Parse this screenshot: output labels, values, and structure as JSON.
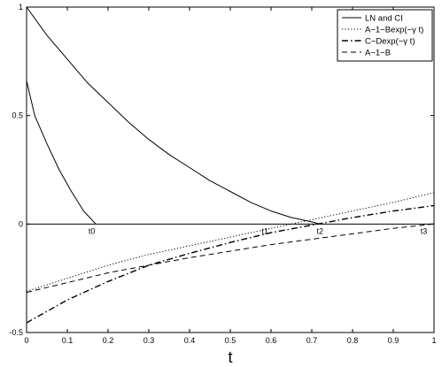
{
  "chart_data": {
    "type": "line",
    "title": "",
    "xlabel": "t",
    "ylabel": "",
    "xlim": [
      0,
      1
    ],
    "ylim": [
      -0.5,
      1
    ],
    "grid": false,
    "legend_position": "top-right",
    "x_ticks": [
      "0",
      "0.1",
      "0.2",
      "0.3",
      "0.4",
      "0.5",
      "0.6",
      "0.7",
      "0.8",
      "0.9",
      "1"
    ],
    "y_ticks": [
      "-0.5",
      "0",
      "0.5",
      "1"
    ],
    "zero_line": 0,
    "annotations": [
      {
        "text": "t0",
        "x": 0.16,
        "y": -0.045
      },
      {
        "text": "t1",
        "x": 0.585,
        "y": -0.045
      },
      {
        "text": "t2",
        "x": 0.72,
        "y": -0.045
      },
      {
        "text": "t3",
        "x": 0.975,
        "y": -0.045
      }
    ],
    "series": [
      {
        "name": "LN and CI",
        "style": "solid",
        "x": [
          0,
          0.05,
          0.1,
          0.15,
          0.2,
          0.25,
          0.3,
          0.35,
          0.4,
          0.45,
          0.5,
          0.55,
          0.6,
          0.65,
          0.7,
          0.72
        ],
        "y": [
          1.0,
          0.87,
          0.76,
          0.65,
          0.56,
          0.47,
          0.39,
          0.32,
          0.26,
          0.2,
          0.15,
          0.1,
          0.06,
          0.03,
          0.01,
          0.0
        ]
      },
      {
        "name": "",
        "style": "solid",
        "x": [
          0,
          0.02,
          0.05,
          0.08,
          0.11,
          0.14,
          0.17
        ],
        "y": [
          0.66,
          0.5,
          0.37,
          0.25,
          0.15,
          0.06,
          0.0
        ]
      },
      {
        "name": "A−1−Bexp(−γ t)",
        "style": "dotted",
        "x": [
          0,
          0.1,
          0.2,
          0.3,
          0.4,
          0.5,
          0.6,
          0.7,
          0.8,
          0.9,
          1.0
        ],
        "y": [
          -0.31,
          -0.25,
          -0.19,
          -0.14,
          -0.1,
          -0.06,
          -0.02,
          0.02,
          0.06,
          0.1,
          0.145
        ]
      },
      {
        "name": "C−Dexp(−γ t)",
        "style": "dashdot",
        "x": [
          0,
          0.1,
          0.2,
          0.3,
          0.4,
          0.5,
          0.6,
          0.7,
          0.8,
          0.9,
          1.0
        ],
        "y": [
          -0.455,
          -0.35,
          -0.265,
          -0.19,
          -0.135,
          -0.085,
          -0.04,
          -0.005,
          0.03,
          0.06,
          0.085
        ]
      },
      {
        "name": "A−1−B",
        "style": "dashed",
        "x": [
          0,
          0.1,
          0.2,
          0.3,
          0.4,
          0.5,
          0.6,
          0.7,
          0.8,
          0.9,
          1.0
        ],
        "y": [
          -0.315,
          -0.27,
          -0.225,
          -0.19,
          -0.155,
          -0.125,
          -0.095,
          -0.07,
          -0.045,
          -0.02,
          0.0
        ]
      }
    ]
  }
}
